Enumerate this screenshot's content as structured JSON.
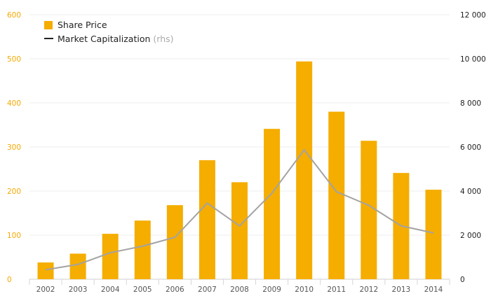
{
  "chart_data": {
    "type": "bar",
    "categories": [
      "2002",
      "2003",
      "2004",
      "2005",
      "2006",
      "2007",
      "2008",
      "2009",
      "2010",
      "2011",
      "2012",
      "2013",
      "2014"
    ],
    "series": [
      {
        "name": "Share Price",
        "type": "bar",
        "axis": "left",
        "color": "#f5ad00",
        "values": [
          38,
          58,
          103,
          133,
          168,
          270,
          220,
          341,
          494,
          380,
          314,
          241,
          203
        ]
      },
      {
        "name": "Market Capitalization",
        "name_suffix": "(rhs)",
        "type": "line",
        "axis": "right",
        "color": "#a3a3a3",
        "values": [
          430,
          670,
          1200,
          1500,
          1900,
          3450,
          2420,
          3900,
          5870,
          3970,
          3350,
          2420,
          2100
        ]
      }
    ],
    "y_left": {
      "lim": [
        0,
        600
      ],
      "ticks": [
        0,
        100,
        200,
        300,
        400,
        500,
        600
      ],
      "tick_labels": [
        "0",
        "100",
        "200",
        "300",
        "400",
        "500",
        "600"
      ],
      "color": "#f5a800"
    },
    "y_right": {
      "lim": [
        0,
        12000
      ],
      "ticks": [
        0,
        2000,
        4000,
        6000,
        8000,
        10000,
        12000
      ],
      "tick_labels": [
        "0",
        "2 000",
        "4 000",
        "6 000",
        "8 000",
        "10 000",
        "12 000"
      ]
    },
    "grid": "horizontal",
    "legend": "top-left",
    "title": "",
    "xlabel": "",
    "ylabel": ""
  }
}
